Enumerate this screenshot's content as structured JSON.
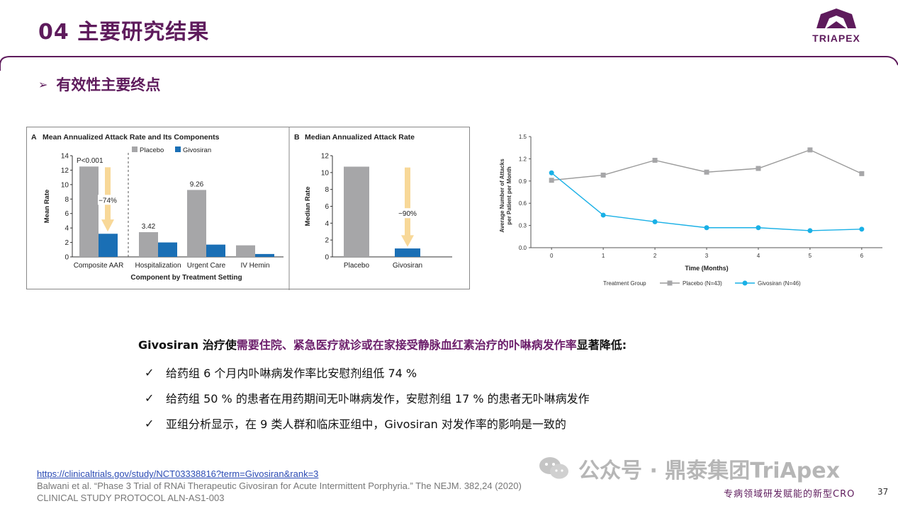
{
  "slide": {
    "title": "04 主要研究结果",
    "logo_text": "TRIAPEX",
    "subtitle_arrow": "➢",
    "subtitle": "有效性主要终点",
    "page_number": "37",
    "footer_tag": "专病领域研发赋能的新型CRO",
    "watermark": "公众号 · 鼎泰集团TriApex",
    "colors": {
      "brand": "#5e1b5c",
      "placebo": "#a6a6a8",
      "givosiran_bar": "#1a6fb5",
      "givosiran_line": "#19b0e6",
      "arrow": "#f8d898"
    }
  },
  "summary": {
    "prefix": "Givosiran 治疗使",
    "highlight": "需要住院、紧急医疗就诊或在家接受静脉血红素治疗的卟啉病发作率",
    "suffix": "显著降低:"
  },
  "bullets": [
    {
      "mark": "✓",
      "text": "给药组 6 个月内卟啉病发作率比安慰剂组低 74 %"
    },
    {
      "mark": "✓",
      "text": "给药组 50 % 的患者在用药期间无卟啉病发作，安慰剂组 17 % 的患者无卟啉病发作"
    },
    {
      "mark": "✓",
      "text": "亚组分析显示，在 9 类人群和临床亚组中，Givosiran 对发作率的影响是一致的"
    }
  ],
  "references": {
    "link": "https://clinicaltrials.gov/study/NCT03338816?term=Givosiran&rank=3",
    "citation": "Balwani et al. “Phase 3 Trial of RNAi Therapeutic Givosiran for Acute Intermittent Porphyria.” The NEJM. 382,24 (2020)",
    "protocol": "CLINICAL STUDY PROTOCOL  ALN-AS1-003"
  },
  "chart_data": [
    {
      "type": "bar",
      "panel": "A",
      "title": "Mean Annualized Attack Rate and Its Components",
      "ylabel": "Mean Rate",
      "xlabel": "Component by Treatment Setting",
      "ylim": [
        0,
        14
      ],
      "yticks": [
        0,
        2,
        4,
        6,
        8,
        10,
        12,
        14
      ],
      "categories": [
        "Composite AAR",
        "Hospitalization",
        "Urgent Care",
        "IV Hemin"
      ],
      "series": [
        {
          "name": "Placebo",
          "values": [
            12.5,
            3.42,
            9.26,
            1.6
          ]
        },
        {
          "name": "Givosiran",
          "values": [
            3.2,
            2.0,
            1.7,
            0.4
          ]
        }
      ],
      "annotations": {
        "p_value": "P<0.001",
        "reduction": "−74%",
        "hosp_label": "3.42",
        "urgent_label": "9.26"
      }
    },
    {
      "type": "bar",
      "panel": "B",
      "title": "Median Annualized Attack Rate",
      "ylabel": "Median Rate",
      "ylim": [
        0,
        12
      ],
      "yticks": [
        0,
        2,
        4,
        6,
        8,
        10,
        12
      ],
      "categories": [
        "Placebo",
        "Givosiran"
      ],
      "values": [
        10.7,
        1.0
      ],
      "annotations": {
        "reduction": "−90%"
      }
    },
    {
      "type": "line",
      "ylabel_line1": "Average Number of Attacks",
      "ylabel_line2": "per Patient per Month",
      "xlabel": "Time (Months)",
      "ylim": [
        0,
        1.5
      ],
      "yticks": [
        "0.0",
        "0.3",
        "0.6",
        "0.9",
        "1.2",
        "1.5"
      ],
      "x": [
        0,
        1,
        2,
        3,
        4,
        5,
        6
      ],
      "legend_title": "Treatment Group",
      "series": [
        {
          "name": "Placebo (N=43)",
          "values": [
            0.91,
            0.98,
            1.18,
            1.02,
            1.07,
            1.32,
            1.0
          ]
        },
        {
          "name": "Givosiran (N=46)",
          "values": [
            1.01,
            0.44,
            0.35,
            0.27,
            0.27,
            0.23,
            0.25
          ]
        }
      ]
    }
  ]
}
